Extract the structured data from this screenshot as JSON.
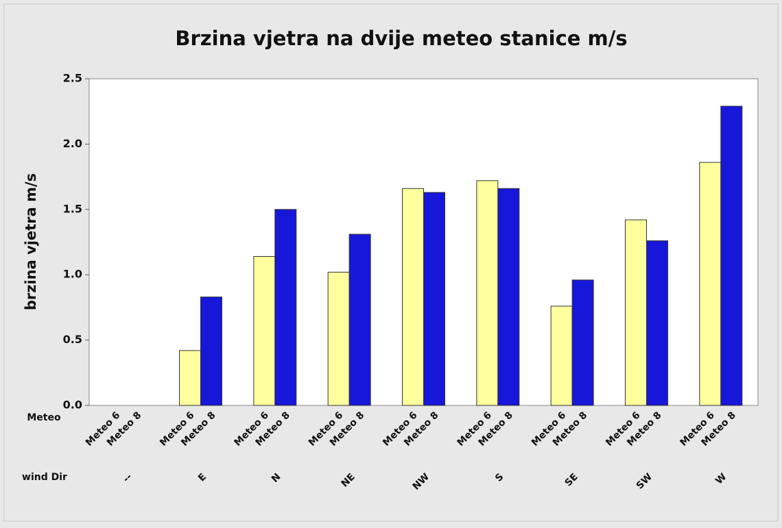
{
  "chart_data": {
    "type": "bar",
    "title": "Brzina vjetra na dvije meteo stanice m/s",
    "y_label": "brzina vjetra m/s",
    "x_row_labels": [
      "Meteo",
      "wind Dir"
    ],
    "categories": [
      "--",
      "E",
      "N",
      "NE",
      "NW",
      "S",
      "SE",
      "SW",
      "W"
    ],
    "series": [
      {
        "name": "Meteo 6",
        "color": "#ffff9e",
        "values": [
          0,
          0.42,
          1.14,
          1.02,
          1.66,
          1.72,
          0.76,
          1.42,
          1.86
        ]
      },
      {
        "name": "Meteo 8",
        "color": "#1717d9",
        "values": [
          0,
          0.83,
          1.5,
          1.31,
          1.63,
          1.66,
          0.96,
          1.26,
          2.29
        ]
      }
    ],
    "ylim": [
      0,
      2.5
    ],
    "yticks": [
      {
        "value": 0,
        "label": "0.0"
      },
      0.5,
      {
        "value": 1,
        "label": "1.0"
      },
      1.5,
      {
        "value": 2,
        "label": "2.0"
      },
      2.5
    ]
  }
}
